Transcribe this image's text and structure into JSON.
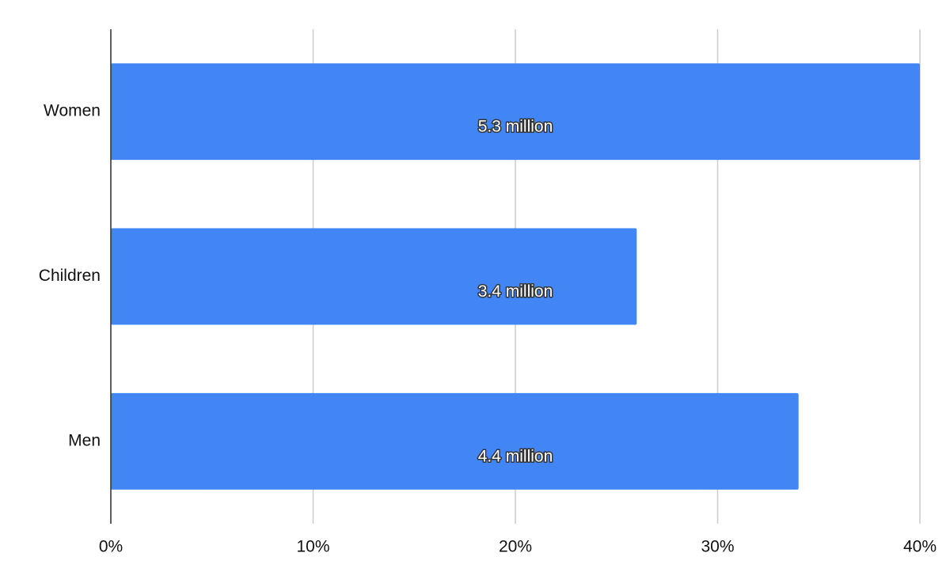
{
  "chart_data": {
    "type": "hbar",
    "categories": [
      "Women",
      "Children",
      "Men"
    ],
    "values": [
      40,
      26,
      34
    ],
    "bar_labels": [
      "5.3 million",
      "3.4 million",
      "4.4 million"
    ],
    "color": "#4285f4",
    "xlim": [
      0,
      40
    ],
    "xticks": [
      {
        "value": 0,
        "label": "0%"
      },
      {
        "value": 10,
        "label": "10%"
      },
      {
        "value": 20,
        "label": "20%"
      },
      {
        "value": 30,
        "label": "30%"
      },
      {
        "value": 40,
        "label": "40%"
      }
    ],
    "grid": true
  }
}
